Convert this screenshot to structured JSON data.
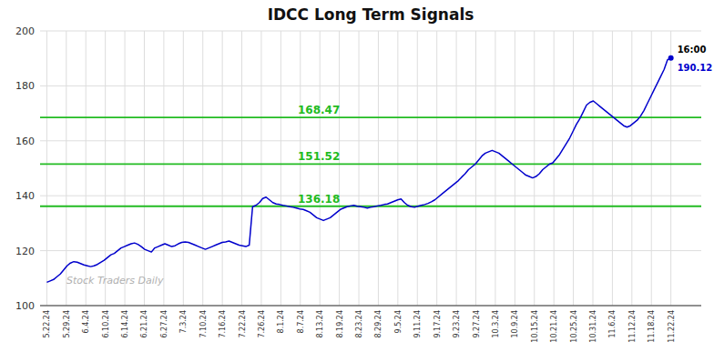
{
  "chart_data": {
    "type": "line",
    "title": "IDCC Long Term Signals",
    "watermark": "Stock Traders Daily",
    "color": "#0000cc",
    "values": [
      108.5,
      109.0,
      109.5,
      110.5,
      111.5,
      113.0,
      114.5,
      115.5,
      116.0,
      115.8,
      115.3,
      114.8,
      114.5,
      114.2,
      114.5,
      115.0,
      115.8,
      116.5,
      117.5,
      118.5,
      119.0,
      120.0,
      121.0,
      121.5,
      122.0,
      122.5,
      122.8,
      122.3,
      121.5,
      120.5,
      120.0,
      119.5,
      121.0,
      121.5,
      122.0,
      122.5,
      122.0,
      121.5,
      121.8,
      122.5,
      123.0,
      123.2,
      123.0,
      122.5,
      122.0,
      121.5,
      121.0,
      120.5,
      121.0,
      121.5,
      122.0,
      122.5,
      123.0,
      123.2,
      123.5,
      123.0,
      122.5,
      122.0,
      121.8,
      121.5,
      122.0,
      136.0,
      136.5,
      137.5,
      139.0,
      139.5,
      138.5,
      137.5,
      137.0,
      136.8,
      136.5,
      136.3,
      136.0,
      135.8,
      135.5,
      135.2,
      135.0,
      134.5,
      134.0,
      133.0,
      132.0,
      131.5,
      131.0,
      131.5,
      132.0,
      133.0,
      134.0,
      135.0,
      135.5,
      136.0,
      136.3,
      136.5,
      136.2,
      136.0,
      135.8,
      135.5,
      135.8,
      136.0,
      136.3,
      136.5,
      136.8,
      137.0,
      137.5,
      138.0,
      138.5,
      138.8,
      137.5,
      136.5,
      136.0,
      135.8,
      136.2,
      136.5,
      136.8,
      137.2,
      137.8,
      138.5,
      139.5,
      140.5,
      141.5,
      142.5,
      143.5,
      144.5,
      145.5,
      146.8,
      148.0,
      149.5,
      150.5,
      151.5,
      153.0,
      154.5,
      155.5,
      156.0,
      156.5,
      156.0,
      155.5,
      154.5,
      153.5,
      152.5,
      151.5,
      150.5,
      149.5,
      148.5,
      147.5,
      147.0,
      146.5,
      147.0,
      148.0,
      149.5,
      150.5,
      151.5,
      152.0,
      153.5,
      155.0,
      157.0,
      159.0,
      161.0,
      163.5,
      166.0,
      168.0,
      170.5,
      173.0,
      174.0,
      174.5,
      173.5,
      172.5,
      171.5,
      170.5,
      169.5,
      168.5,
      167.5,
      166.5,
      165.5,
      165.0,
      165.5,
      166.5,
      167.5,
      169.0,
      171.0,
      173.5,
      176.0,
      178.5,
      181.0,
      183.5,
      186.0,
      189.5,
      190.12
    ],
    "hlines": [
      {
        "y": 136.18,
        "label": "136.18",
        "color": "#22bb22"
      },
      {
        "y": 151.52,
        "label": "151.52",
        "color": "#22bb22"
      },
      {
        "y": 168.47,
        "label": "168.47",
        "color": "#22bb22"
      }
    ],
    "last_point": {
      "label": "16:00",
      "value": 190.12,
      "color": "#0000cc"
    },
    "xlim": [
      -2,
      194
    ],
    "xticks": [
      {
        "value": 0,
        "label": "5.22.24"
      },
      {
        "value": 5.78125,
        "label": "5.29.24"
      },
      {
        "value": 11.5625,
        "label": "6.4.24"
      },
      {
        "value": 17.34375,
        "label": "6.10.24"
      },
      {
        "value": 23.125,
        "label": "6.14.24"
      },
      {
        "value": 28.90625,
        "label": "6.21.24"
      },
      {
        "value": 34.6875,
        "label": "6.27.24"
      },
      {
        "value": 40.46875,
        "label": "7.3.24"
      },
      {
        "value": 46.25,
        "label": "7.10.24"
      },
      {
        "value": 52.03125,
        "label": "7.16.24"
      },
      {
        "value": 57.8125,
        "label": "7.22.24"
      },
      {
        "value": 63.59375,
        "label": "7.26.24"
      },
      {
        "value": 69.375,
        "label": "8.1.24"
      },
      {
        "value": 75.15625,
        "label": "8.7.24"
      },
      {
        "value": 80.9375,
        "label": "8.13.24"
      },
      {
        "value": 86.71875,
        "label": "8.19.24"
      },
      {
        "value": 92.5,
        "label": "8.23.24"
      },
      {
        "value": 98.28125,
        "label": "8.29.24"
      },
      {
        "value": 104.0625,
        "label": "9.5.24"
      },
      {
        "value": 109.84375,
        "label": "9.11.24"
      },
      {
        "value": 115.625,
        "label": "9.17.24"
      },
      {
        "value": 121.40625,
        "label": "9.23.24"
      },
      {
        "value": 127.1875,
        "label": "9.27.24"
      },
      {
        "value": 132.96875,
        "label": "10.3.24"
      },
      {
        "value": 138.75,
        "label": "10.9.24"
      },
      {
        "value": 144.53125,
        "label": "10.15.24"
      },
      {
        "value": 150.3125,
        "label": "10.21.24"
      },
      {
        "value": 156.09375,
        "label": "10.25.24"
      },
      {
        "value": 161.875,
        "label": "10.31.24"
      },
      {
        "value": 167.65625,
        "label": "11.6.24"
      },
      {
        "value": 173.4375,
        "label": "11.12.24"
      },
      {
        "value": 179.21875,
        "label": "11.18.24"
      },
      {
        "value": 185,
        "label": "11.22.24"
      }
    ],
    "ylim": [
      100,
      200
    ],
    "yticks": [
      100,
      120,
      140,
      160,
      180,
      200
    ],
    "grid": true
  }
}
